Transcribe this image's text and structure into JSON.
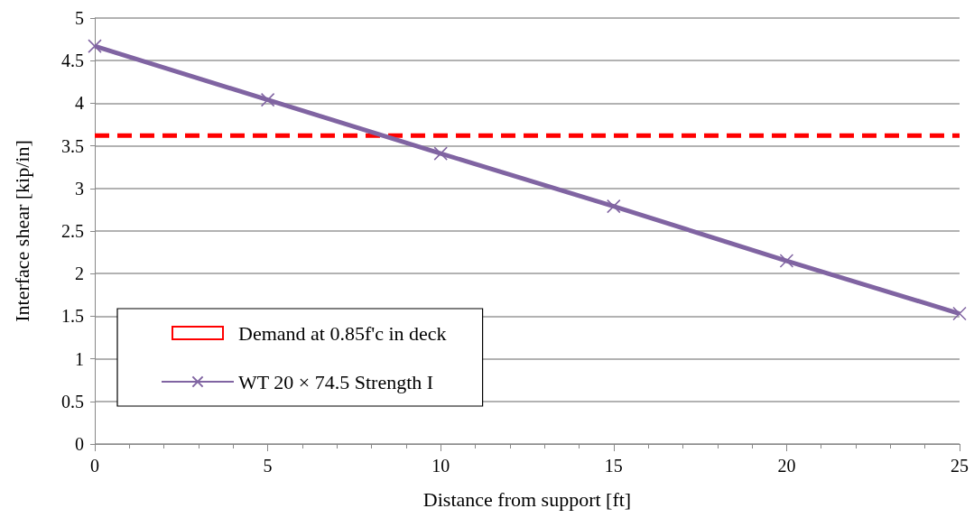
{
  "chart_data": {
    "type": "line",
    "xlabel": "Distance from support [ft]",
    "ylabel": "Interface shear [kip/in]",
    "xlim": [
      0,
      25
    ],
    "xticks": [
      0,
      5,
      10,
      15,
      20,
      25
    ],
    "ylim": [
      0,
      5
    ],
    "yticks": [
      0,
      0.5,
      1,
      1.5,
      2,
      2.5,
      3,
      3.5,
      4,
      4.5,
      5
    ],
    "grid": "y",
    "legend": "bottom left",
    "series": [
      {
        "name": "Demand at 0.85f'c in deck",
        "color": "#ff0000",
        "x": [
          0,
          25
        ],
        "values": [
          3.62,
          3.62
        ],
        "line_style": "dashed",
        "marker": "none"
      },
      {
        "name": "WT 20 × 74.5 Strength I",
        "color": "#8064a2",
        "x": [
          0,
          5,
          10,
          15,
          20,
          25
        ],
        "values": [
          4.67,
          4.04,
          3.41,
          2.79,
          2.15,
          1.53
        ],
        "line_style": "solid",
        "marker": "cross"
      }
    ]
  }
}
